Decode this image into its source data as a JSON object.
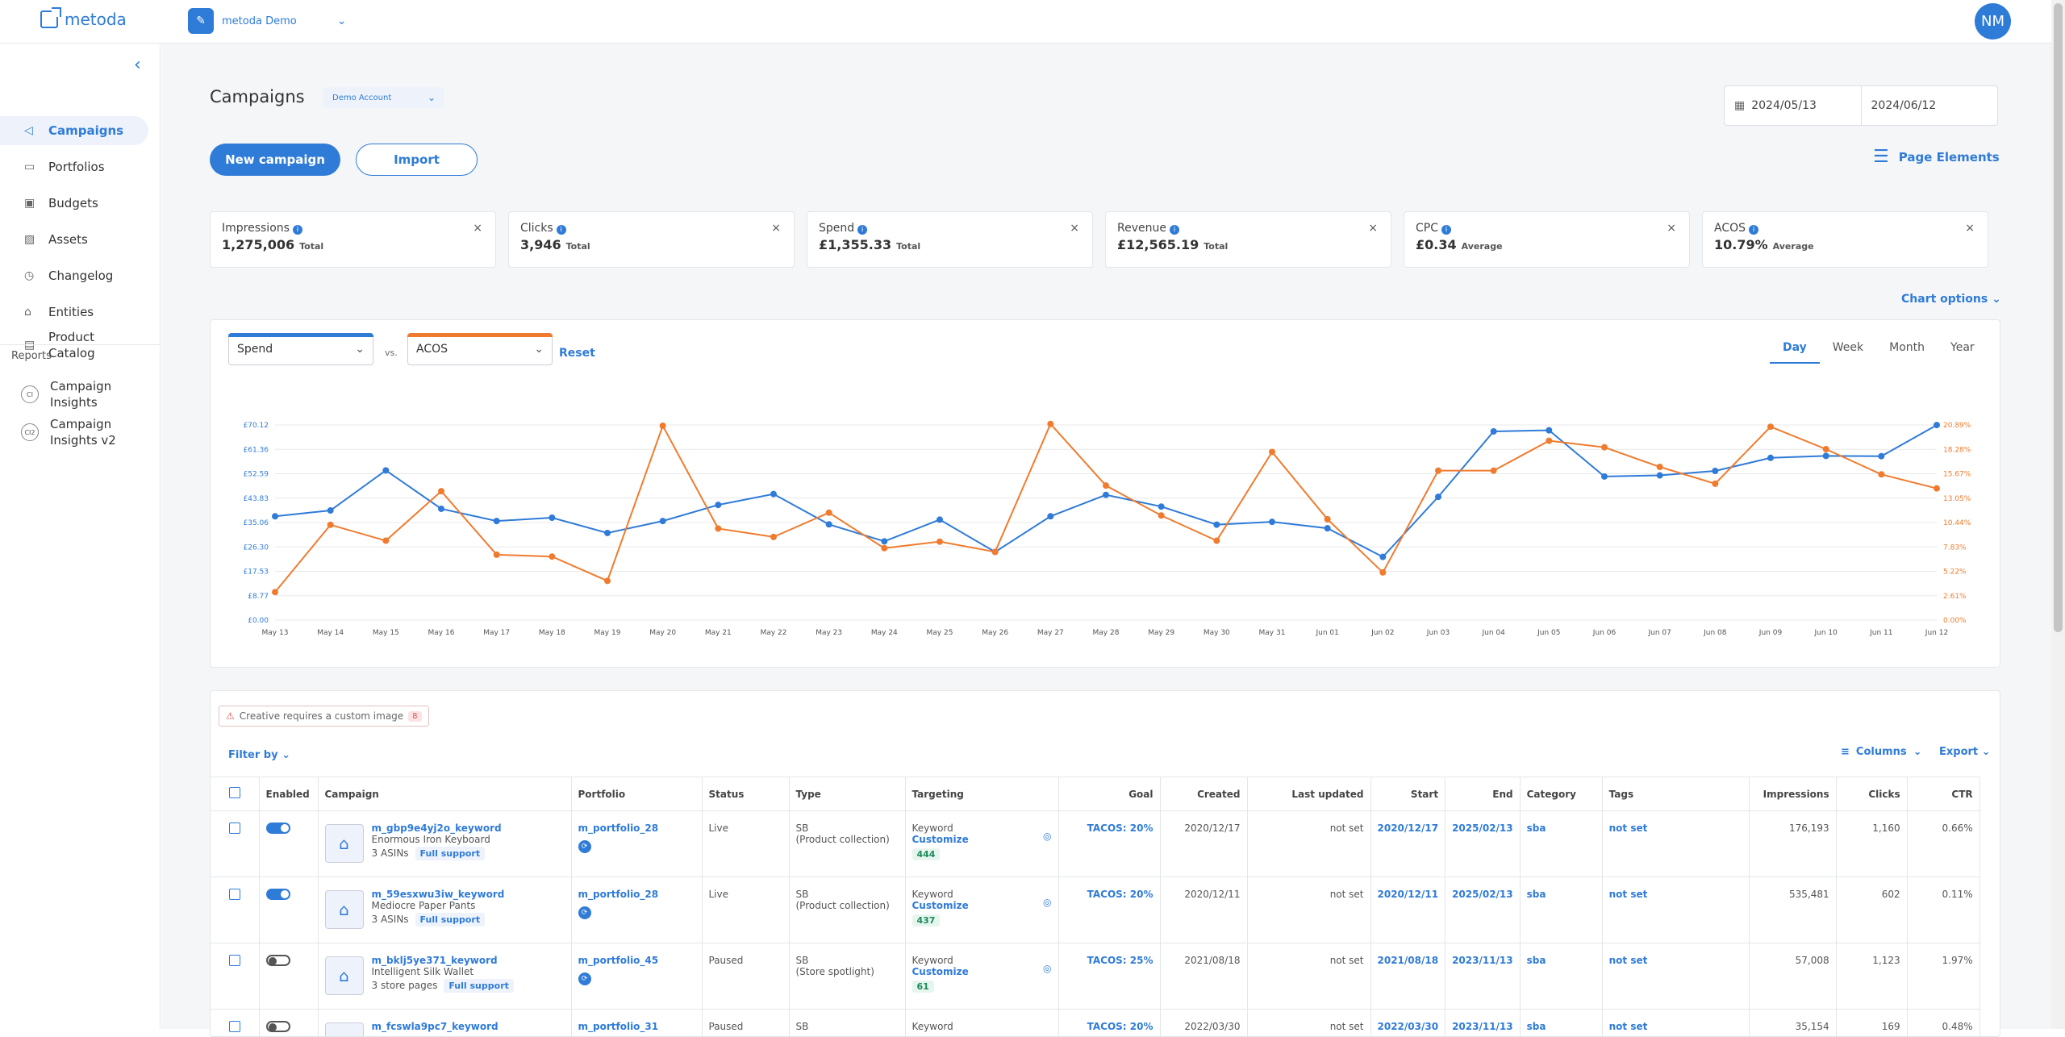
{
  "app": {
    "logo": "metoda",
    "workspace": "metoda Demo",
    "avatar": "NM"
  },
  "sidebar": {
    "items": [
      {
        "label": "Campaigns",
        "icon": "megaphone-icon"
      },
      {
        "label": "Portfolios",
        "icon": "folder-icon"
      },
      {
        "label": "Budgets",
        "icon": "wallet-icon"
      },
      {
        "label": "Assets",
        "icon": "image-icon"
      },
      {
        "label": "Changelog",
        "icon": "clock-icon"
      },
      {
        "label": "Entities",
        "icon": "bank-icon"
      },
      {
        "label": "Product",
        "label2": "Catalog",
        "icon": "catalog-icon"
      }
    ],
    "reports_label": "Reports",
    "reports": [
      {
        "label": "Campaign",
        "label2": "Insights",
        "badge": "CI"
      },
      {
        "label": "Campaign",
        "label2": "Insights v2",
        "badge": "CI2"
      }
    ]
  },
  "page": {
    "title": "Campaigns",
    "account": "Demo Account",
    "date_start": "2024/05/13",
    "date_end": "2024/06/12",
    "new_campaign": "New campaign",
    "import": "Import",
    "page_elements": "Page Elements",
    "chart_options": "Chart options"
  },
  "cards": [
    {
      "label": "Impressions",
      "value": "1,275,006",
      "suffix": "Total"
    },
    {
      "label": "Clicks",
      "value": "3,946",
      "suffix": "Total"
    },
    {
      "label": "Spend",
      "value": "£1,355.33",
      "suffix": "Total"
    },
    {
      "label": "Revenue",
      "value": "£12,565.19",
      "suffix": "Total"
    },
    {
      "label": "CPC",
      "value": "£0.34",
      "suffix": "Average"
    },
    {
      "label": "ACOS",
      "value": "10.79%",
      "suffix": "Average"
    }
  ],
  "chart_controls": {
    "metric1": "Spend",
    "vs": "vs.",
    "metric2": "ACOS",
    "reset": "Reset",
    "periods": [
      "Day",
      "Week",
      "Month",
      "Year"
    ],
    "active_period": "Day"
  },
  "chart_data": {
    "type": "line",
    "x": [
      "May 13",
      "May 14",
      "May 15",
      "May 16",
      "May 17",
      "May 18",
      "May 19",
      "May 20",
      "May 21",
      "May 22",
      "May 23",
      "May 24",
      "May 25",
      "May 26",
      "May 27",
      "May 28",
      "May 29",
      "May 30",
      "May 31",
      "Jun 01",
      "Jun 02",
      "Jun 03",
      "Jun 04",
      "Jun 05",
      "Jun 06",
      "Jun 07",
      "Jun 08",
      "Jun 09",
      "Jun 10",
      "Jun 11",
      "Jun 12"
    ],
    "y_left_ticks": [
      "£0.00",
      "£8.77",
      "£17.53",
      "£26.30",
      "£35.06",
      "£43.83",
      "£52.59",
      "£61.36",
      "£70.12"
    ],
    "y_right_ticks": [
      "0.00%",
      "2.61%",
      "5.22%",
      "7.83%",
      "10.44%",
      "13.05%",
      "15.67%",
      "18.28%",
      "20.89%"
    ],
    "ylim_left": [
      0,
      70.12
    ],
    "ylim_right": [
      0,
      20.89
    ],
    "series": [
      {
        "name": "Spend",
        "axis": "left",
        "color": "#2f7bd8",
        "values": [
          37.3,
          39.4,
          53.8,
          40.0,
          35.6,
          36.8,
          31.3,
          35.6,
          41.4,
          45.3,
          34.4,
          28.3,
          36.1,
          24.5,
          37.3,
          45.0,
          40.8,
          34.3,
          35.3,
          33.0,
          22.7,
          44.3,
          67.8,
          68.2,
          51.6,
          52.0,
          53.6,
          58.3,
          59.0,
          58.9,
          70.1
        ]
      },
      {
        "name": "ACOS",
        "axis": "right",
        "color": "#f07b2e",
        "values": [
          3.0,
          10.2,
          8.5,
          13.8,
          7.0,
          6.8,
          4.2,
          20.8,
          9.8,
          8.9,
          11.5,
          7.7,
          8.4,
          7.3,
          21.0,
          14.4,
          11.2,
          8.5,
          18.0,
          10.8,
          5.1,
          16.0,
          16.0,
          19.2,
          18.5,
          16.4,
          14.6,
          20.7,
          18.3,
          15.6,
          14.1
        ]
      }
    ]
  },
  "table": {
    "warning": "Creative requires a custom image",
    "warning_count": "8",
    "filter_by": "Filter by",
    "columns_label": "Columns",
    "export_label": "Export",
    "headers": [
      "Enabled",
      "Campaign",
      "Portfolio",
      "Status",
      "Type",
      "Targeting",
      "Goal",
      "Created",
      "Last updated",
      "Start",
      "End",
      "Category",
      "Tags",
      "Impressions",
      "Clicks",
      "CTR"
    ],
    "rows": [
      {
        "enabled": true,
        "name": "m_gbp9e4yj2o_keyword",
        "product": "Enormous Iron Keyboard",
        "asins": "3 ASINs",
        "support": "Full support",
        "portfolio": "m_portfolio_28",
        "status": "Live",
        "type": "SB",
        "type2": "(Product collection)",
        "targeting": "Keyword",
        "customize": "Customize",
        "count": "444",
        "goal": "TACOS: 20%",
        "created": "2020/12/17",
        "updated": "not set",
        "start": "2020/12/17",
        "end": "2025/02/13",
        "category": "sba",
        "tags": "not set",
        "impressions": "176,193",
        "clicks": "1,160",
        "ctr": "0.66%"
      },
      {
        "enabled": true,
        "name": "m_59esxwu3iw_keyword",
        "product": "Mediocre Paper Pants",
        "asins": "3 ASINs",
        "support": "Full support",
        "portfolio": "m_portfolio_28",
        "status": "Live",
        "type": "SB",
        "type2": "(Product collection)",
        "targeting": "Keyword",
        "customize": "Customize",
        "count": "437",
        "goal": "TACOS: 20%",
        "created": "2020/12/11",
        "updated": "not set",
        "start": "2020/12/11",
        "end": "2025/02/13",
        "category": "sba",
        "tags": "not set",
        "impressions": "535,481",
        "clicks": "602",
        "ctr": "0.11%"
      },
      {
        "enabled": false,
        "name": "m_bklj5ye371_keyword",
        "product": "Intelligent Silk Wallet",
        "asins": "3 store pages",
        "support": "Full support",
        "portfolio": "m_portfolio_45",
        "status": "Paused",
        "type": "SB",
        "type2": "(Store spotlight)",
        "targeting": "Keyword",
        "customize": "Customize",
        "count": "61",
        "goal": "TACOS: 25%",
        "created": "2021/08/18",
        "updated": "not set",
        "start": "2021/08/18",
        "end": "2023/11/13",
        "category": "sba",
        "tags": "not set",
        "impressions": "57,008",
        "clicks": "1,123",
        "ctr": "1.97%"
      },
      {
        "enabled": false,
        "name": "m_fcswla9pc7_keyword",
        "product": "",
        "asins": "",
        "support": "",
        "portfolio": "m_portfolio_31",
        "status": "Paused",
        "type": "SB",
        "type2": "",
        "targeting": "Keyword",
        "customize": "",
        "count": "",
        "goal": "TACOS: 20%",
        "created": "2022/03/30",
        "updated": "not set",
        "start": "2022/03/30",
        "end": "2023/11/13",
        "category": "sba",
        "tags": "not set",
        "impressions": "35,154",
        "clicks": "169",
        "ctr": "0.48%"
      }
    ]
  }
}
